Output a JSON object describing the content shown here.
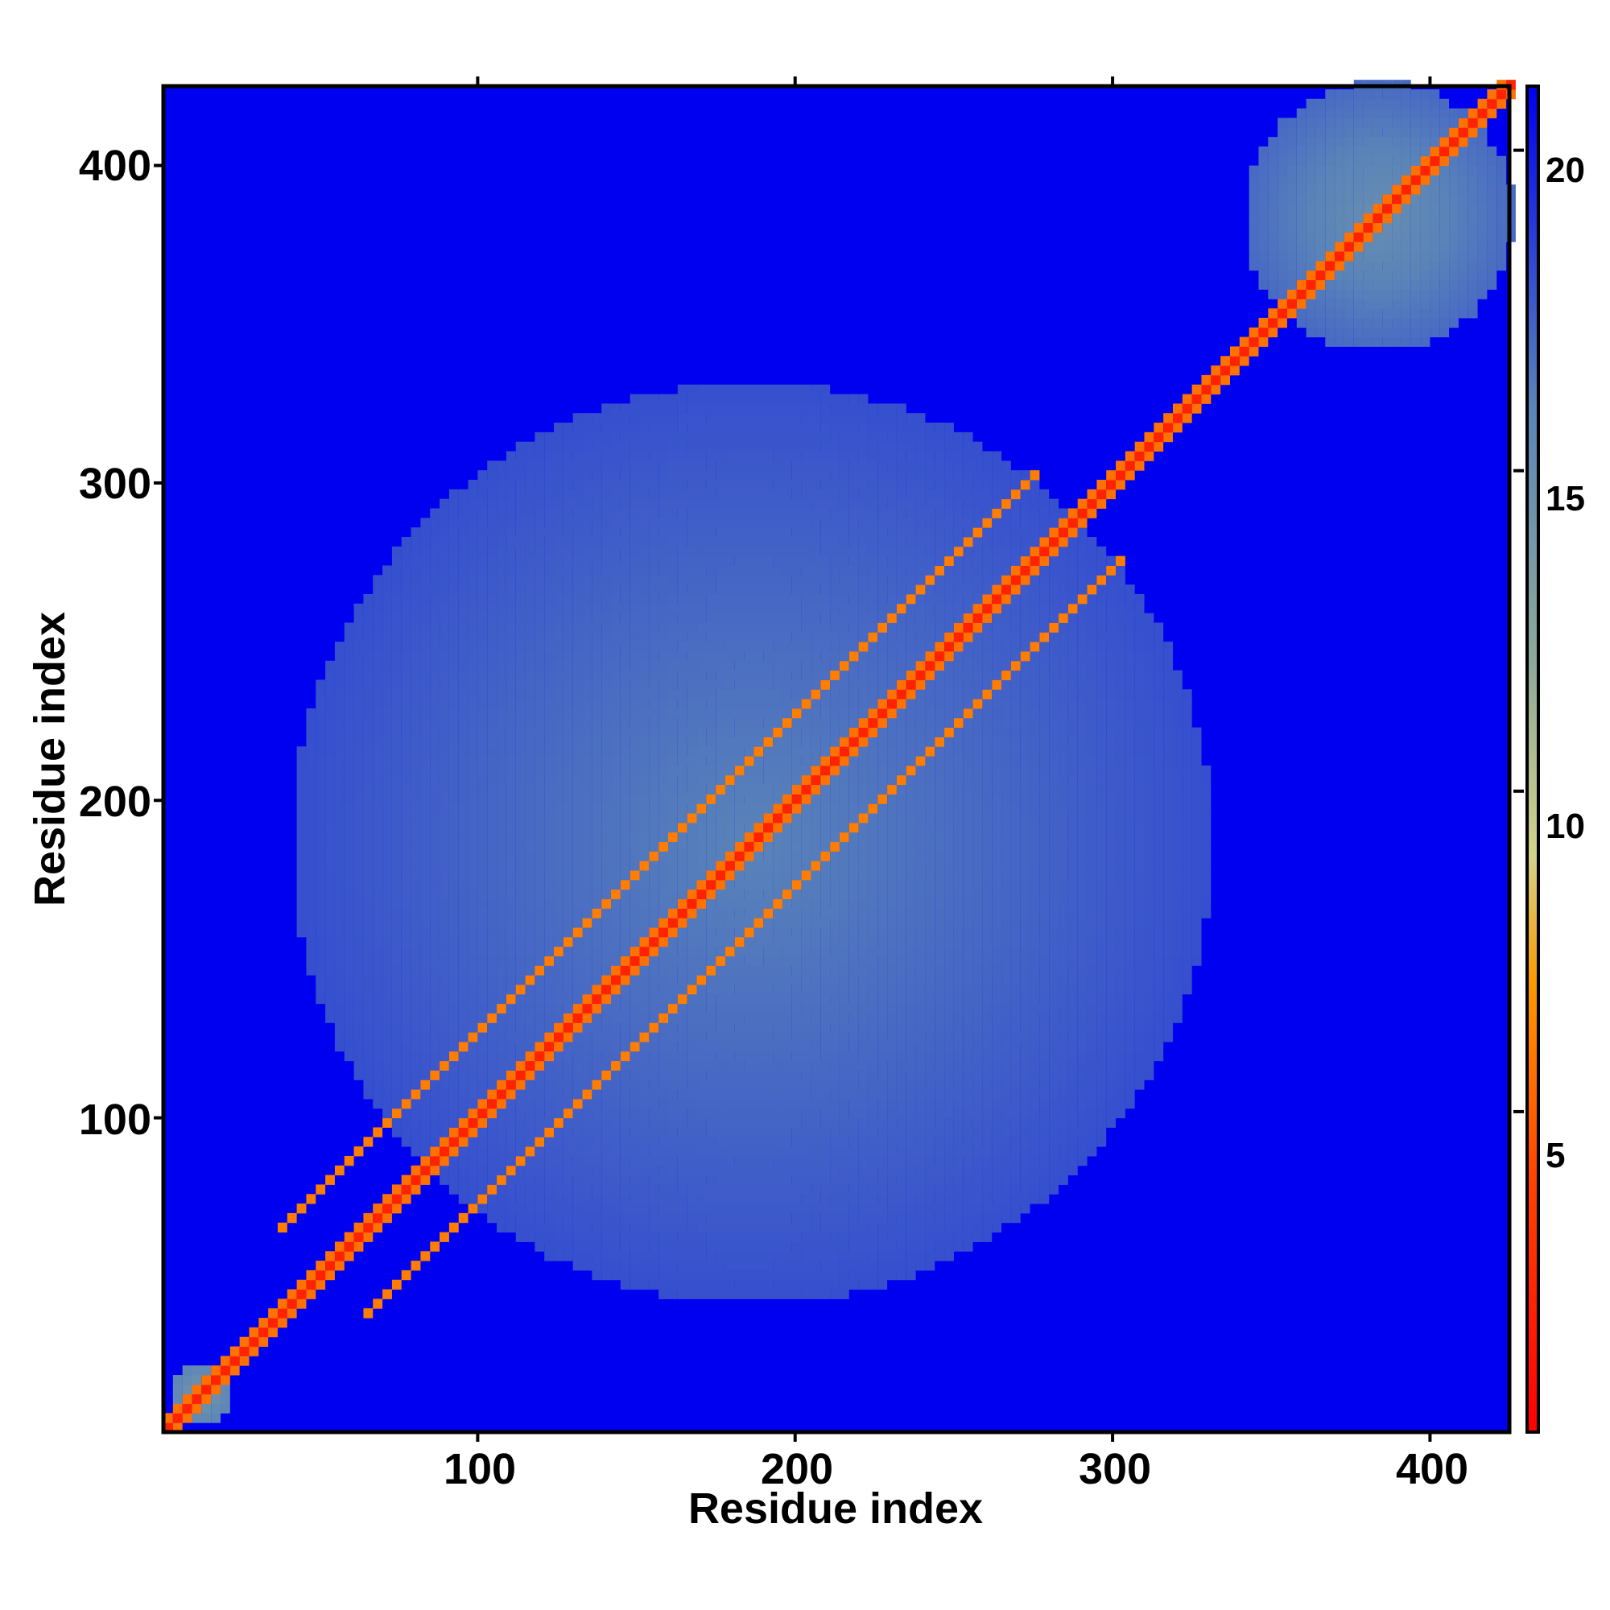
{
  "chart_data": {
    "type": "heatmap",
    "title": "",
    "xlabel": "Residue index",
    "ylabel": "Residue index",
    "xlim": [
      1,
      425
    ],
    "ylim": [
      1,
      425
    ],
    "x_ticks": [
      100,
      200,
      300,
      400
    ],
    "y_ticks": [
      100,
      200,
      300,
      400
    ],
    "x_tick_labels": [
      "100",
      "200",
      "300",
      "400"
    ],
    "y_tick_labels": [
      "100",
      "200",
      "300",
      "400"
    ],
    "n_residues": 425,
    "grid": false,
    "legend": "colorbar right",
    "value_name": "distance",
    "colorbar": {
      "range": [
        0,
        21
      ],
      "ticks": [
        5,
        10,
        15,
        20
      ],
      "tick_labels": [
        "5",
        "10",
        "15",
        "20"
      ],
      "stops": [
        {
          "value": 0,
          "color": "#ff0000"
        },
        {
          "value": 4,
          "color": "#ff4400"
        },
        {
          "value": 7,
          "color": "#ff9900"
        },
        {
          "value": 9,
          "color": "#d2d28a"
        },
        {
          "value": 12,
          "color": "#8fa89a"
        },
        {
          "value": 16,
          "color": "#5a84b8"
        },
        {
          "value": 21,
          "color": "#0000f0"
        }
      ]
    },
    "features": [
      {
        "kind": "main-diagonal",
        "from": 1,
        "to": 425,
        "value": 2
      },
      {
        "kind": "parallel-band",
        "offset": 26,
        "from": 50,
        "to": 290,
        "value": 6
      },
      {
        "kind": "parallel-band",
        "offset": -26,
        "from": 50,
        "to": 290,
        "value": 6
      },
      {
        "kind": "domain-block",
        "start": 40,
        "end": 330,
        "value": 16
      },
      {
        "kind": "domain-block",
        "start": 340,
        "end": 425,
        "value": 15
      },
      {
        "kind": "domain-block",
        "start": 1,
        "end": 22,
        "value": 14
      }
    ],
    "background_value": 21
  }
}
